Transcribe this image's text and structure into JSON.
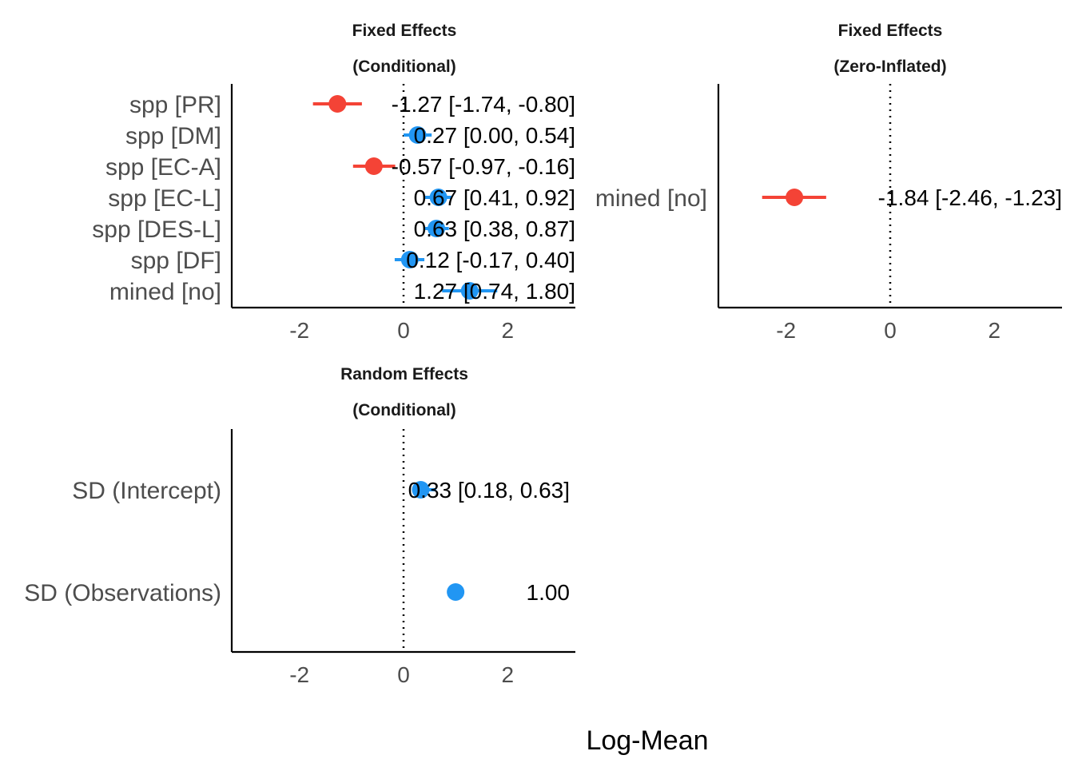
{
  "x_axis_label": "Log-Mean",
  "colors": {
    "positive": "#2196F3",
    "negative": "#F44336",
    "axis": "#000000",
    "tick_text": "#4d4d4d"
  },
  "chart_data": [
    {
      "type": "forest",
      "title_line1": "Fixed Effects",
      "title_line2": "(Conditional)",
      "xlim": [
        -3.3,
        3.3
      ],
      "xticks": [
        -2,
        0,
        2
      ],
      "xtick_labels": [
        "-2",
        "0",
        "2"
      ],
      "reference_line": 0,
      "terms": [
        {
          "label": "spp [PR]",
          "estimate": -1.27,
          "low": -1.74,
          "high": -0.8,
          "text": "-1.27 [-1.74, -0.80]"
        },
        {
          "label": "spp [DM]",
          "estimate": 0.27,
          "low": 0.0,
          "high": 0.54,
          "text": "0.27 [0.00, 0.54]"
        },
        {
          "label": "spp [EC-A]",
          "estimate": -0.57,
          "low": -0.97,
          "high": -0.16,
          "text": "-0.57 [-0.97, -0.16]"
        },
        {
          "label": "spp [EC-L]",
          "estimate": 0.67,
          "low": 0.41,
          "high": 0.92,
          "text": "0.67 [0.41, 0.92]"
        },
        {
          "label": "spp [DES-L]",
          "estimate": 0.63,
          "low": 0.38,
          "high": 0.87,
          "text": "0.63 [0.38, 0.87]"
        },
        {
          "label": "spp [DF]",
          "estimate": 0.12,
          "low": -0.17,
          "high": 0.4,
          "text": "0.12 [-0.17, 0.40]"
        },
        {
          "label": "mined [no]",
          "estimate": 1.27,
          "low": 0.74,
          "high": 1.8,
          "text": "1.27 [0.74, 1.80]"
        }
      ]
    },
    {
      "type": "forest",
      "title_line1": "Fixed Effects",
      "title_line2": "(Zero-Inflated)",
      "xlim": [
        -3.3,
        3.3
      ],
      "xticks": [
        -2,
        0,
        2
      ],
      "xtick_labels": [
        "-2",
        "0",
        "2"
      ],
      "reference_line": 0,
      "terms": [
        {
          "label": "mined [no]",
          "estimate": -1.84,
          "low": -2.46,
          "high": -1.23,
          "text": "-1.84 [-2.46, -1.23]"
        }
      ]
    },
    {
      "type": "forest",
      "title_line1": "Random Effects",
      "title_line2": "(Conditional)",
      "xlim": [
        -3.3,
        3.3
      ],
      "xticks": [
        -2,
        0,
        2
      ],
      "xtick_labels": [
        "-2",
        "0",
        "2"
      ],
      "reference_line": 0,
      "terms": [
        {
          "label": "SD (Intercept)",
          "estimate": 0.33,
          "low": 0.18,
          "high": 0.63,
          "text": "0.33 [0.18, 0.63]"
        },
        {
          "label": "SD (Observations)",
          "estimate": 1.0,
          "low": null,
          "high": null,
          "text": "1.00"
        }
      ]
    }
  ]
}
